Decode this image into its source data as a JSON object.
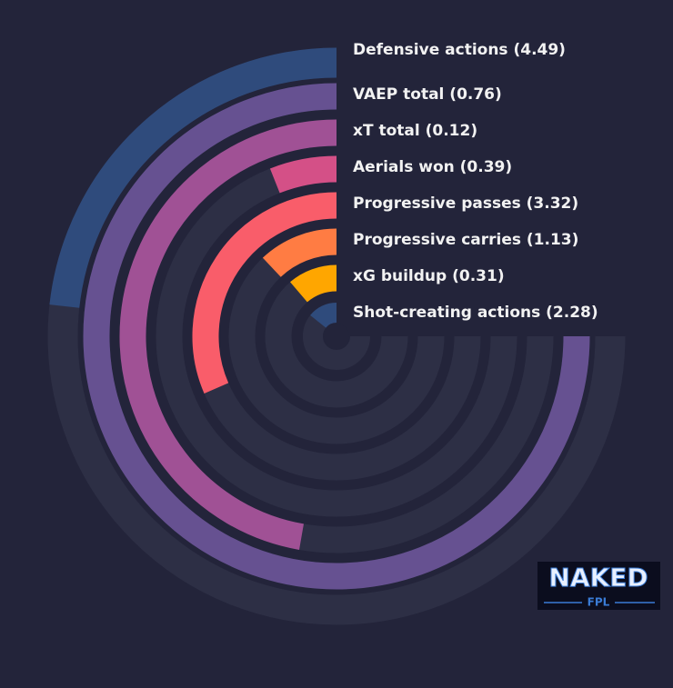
{
  "chart_data": {
    "type": "radial-bar",
    "categories": [
      "Defensive actions (4.49)",
      "VAEP total (0.76)",
      "xT total (0.12)",
      "Aerials won (0.39)",
      "Progressive passes (3.32)",
      "Progressive carries (1.13)",
      "xG buildup (0.31)",
      "Shot-creating actions (2.28)"
    ],
    "values": [
      31,
      100,
      63,
      8,
      42,
      16,
      15,
      19
    ],
    "colors": [
      "#2f4b7c",
      "#665191",
      "#a05195",
      "#d45087",
      "#f95d6a",
      "#ff7c43",
      "#ffa600",
      "#2f4b7c"
    ],
    "xlim": [
      0,
      100
    ]
  },
  "logo": {
    "title": "NAKED",
    "subtitle": "FPL"
  }
}
